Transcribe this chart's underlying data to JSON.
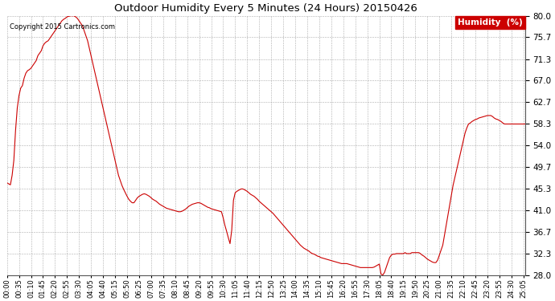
{
  "title": "Outdoor Humidity Every 5 Minutes (24 Hours) 20150426",
  "copyright": "Copyright 2015 Cartronics.com",
  "legend_label": "Humidity  (%)",
  "line_color": "#cc0000",
  "bg_color": "#ffffff",
  "grid_color": "#999999",
  "ylim": [
    28.0,
    80.0
  ],
  "yticks": [
    28.0,
    32.3,
    36.7,
    41.0,
    45.3,
    49.7,
    54.0,
    58.3,
    62.7,
    67.0,
    71.3,
    75.7,
    80.0
  ],
  "humidity_data": [
    46.5,
    46.3,
    46.1,
    48.0,
    51.0,
    57.0,
    61.5,
    64.0,
    65.5,
    66.0,
    67.5,
    68.5,
    69.0,
    69.2,
    69.5,
    70.0,
    70.5,
    71.0,
    72.0,
    72.5,
    73.0,
    74.0,
    74.5,
    74.8,
    75.0,
    75.5,
    76.0,
    76.5,
    77.0,
    77.5,
    78.0,
    78.5,
    79.0,
    79.3,
    79.5,
    79.8,
    79.9,
    80.0,
    80.0,
    80.0,
    79.8,
    79.5,
    79.0,
    78.5,
    78.0,
    77.0,
    76.0,
    75.0,
    73.5,
    72.0,
    70.5,
    69.0,
    67.5,
    66.0,
    64.5,
    63.0,
    61.5,
    60.0,
    58.5,
    57.0,
    55.5,
    54.0,
    52.5,
    51.0,
    49.5,
    48.0,
    47.0,
    46.0,
    45.2,
    44.5,
    43.8,
    43.2,
    42.8,
    42.5,
    42.5,
    43.0,
    43.5,
    43.8,
    44.0,
    44.2,
    44.3,
    44.2,
    44.0,
    43.8,
    43.5,
    43.2,
    43.0,
    42.8,
    42.5,
    42.2,
    42.0,
    41.8,
    41.6,
    41.4,
    41.3,
    41.2,
    41.1,
    41.0,
    40.9,
    40.8,
    40.7,
    40.7,
    40.8,
    41.0,
    41.2,
    41.5,
    41.8,
    42.0,
    42.2,
    42.3,
    42.4,
    42.5,
    42.5,
    42.4,
    42.2,
    42.0,
    41.8,
    41.6,
    41.5,
    41.3,
    41.2,
    41.1,
    41.0,
    40.9,
    40.8,
    40.7,
    39.5,
    38.0,
    36.8,
    35.5,
    34.3,
    37.0,
    43.0,
    44.5,
    44.8,
    45.0,
    45.2,
    45.3,
    45.2,
    45.0,
    44.8,
    44.5,
    44.2,
    44.0,
    43.8,
    43.5,
    43.2,
    42.8,
    42.5,
    42.2,
    41.9,
    41.6,
    41.3,
    41.0,
    40.7,
    40.4,
    40.0,
    39.6,
    39.2,
    38.8,
    38.4,
    38.0,
    37.6,
    37.2,
    36.8,
    36.4,
    36.0,
    35.6,
    35.2,
    34.8,
    34.4,
    34.0,
    33.7,
    33.4,
    33.2,
    33.0,
    32.8,
    32.5,
    32.3,
    32.2,
    32.0,
    31.8,
    31.7,
    31.5,
    31.4,
    31.3,
    31.2,
    31.1,
    31.0,
    30.9,
    30.8,
    30.7,
    30.6,
    30.5,
    30.4,
    30.3,
    30.3,
    30.3,
    30.3,
    30.2,
    30.1,
    30.0,
    29.9,
    29.8,
    29.7,
    29.6,
    29.5,
    29.5,
    29.5,
    29.5,
    29.5,
    29.5,
    29.5,
    29.5,
    29.6,
    29.8,
    30.0,
    30.2,
    28.2,
    28.0,
    28.5,
    29.5,
    30.5,
    31.5,
    32.0,
    32.2,
    32.2,
    32.3,
    32.3,
    32.3,
    32.3,
    32.3,
    32.5,
    32.3,
    32.3,
    32.3,
    32.5,
    32.5,
    32.5,
    32.5,
    32.5,
    32.3,
    32.0,
    31.8,
    31.5,
    31.2,
    31.0,
    30.8,
    30.6,
    30.5,
    30.5,
    31.0,
    32.0,
    33.0,
    34.0,
    36.0,
    38.0,
    40.0,
    42.0,
    44.0,
    46.0,
    47.5,
    49.0,
    50.5,
    52.0,
    53.5,
    55.0,
    56.5,
    57.5,
    58.3,
    58.5,
    58.8,
    59.0,
    59.2,
    59.3,
    59.5,
    59.6,
    59.7,
    59.8,
    59.9,
    60.0,
    60.0,
    60.0,
    59.8,
    59.5,
    59.3,
    59.2,
    59.0,
    58.8,
    58.5,
    58.3,
    58.3,
    58.3,
    58.3,
    58.3,
    58.3,
    58.3,
    58.3,
    58.3,
    58.3,
    58.3,
    58.3,
    58.3
  ],
  "xtick_every": 7,
  "title_fontsize": 9.5,
  "ytick_fontsize": 7.5,
  "xtick_fontsize": 6.0
}
